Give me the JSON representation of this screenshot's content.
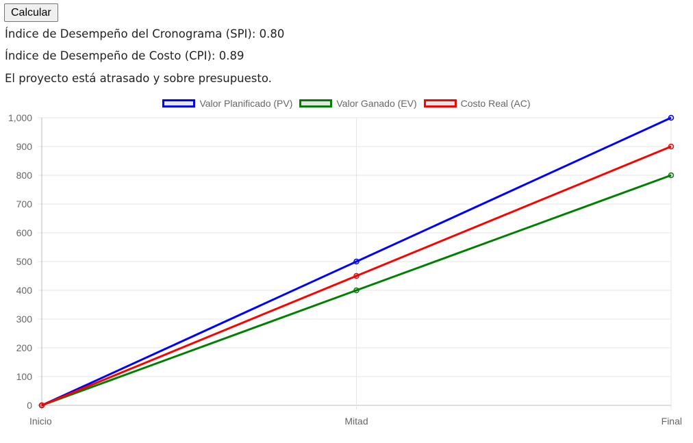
{
  "button": {
    "label": "Calcular"
  },
  "results": {
    "spi_line": "Índice de Desempeño del Cronograma (SPI): 0.80",
    "cpi_line": "Índice de Desempeño de Costo (CPI): 0.89",
    "status_line": "El proyecto está atrasado y sobre presupuesto."
  },
  "chart_data": {
    "type": "line",
    "x": [
      "Inicio",
      "Mitad",
      "Final"
    ],
    "series": [
      {
        "name": "Valor Planificado (PV)",
        "values": [
          0,
          500,
          1000
        ],
        "color": "#0000ff"
      },
      {
        "name": "Valor Ganado (EV)",
        "values": [
          0,
          400,
          800
        ],
        "color": "#008000"
      },
      {
        "name": "Costo Real (AC)",
        "values": [
          0,
          450,
          900
        ],
        "color": "#ff0000"
      }
    ],
    "ylim": [
      0,
      1000
    ],
    "y_ticks": [
      "0",
      "100",
      "200",
      "300",
      "400",
      "500",
      "600",
      "700",
      "800",
      "900",
      "1,000"
    ],
    "grid": true,
    "legend_position": "top"
  }
}
